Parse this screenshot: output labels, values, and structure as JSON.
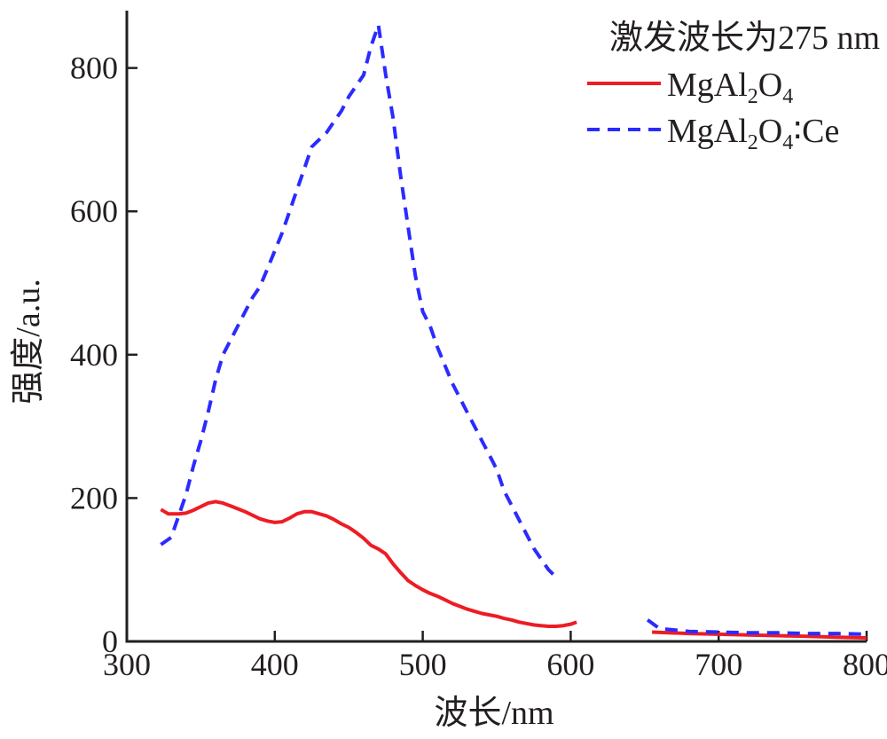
{
  "chart_data": {
    "type": "line",
    "title": "",
    "xlabel": "波长/nm",
    "ylabel": "强度/a.u.",
    "xlim": [
      300,
      800
    ],
    "ylim": [
      0,
      880
    ],
    "x_ticks": [
      300,
      400,
      500,
      600,
      700,
      800
    ],
    "y_ticks": [
      0,
      200,
      400,
      600,
      800
    ],
    "grid": false,
    "legend": {
      "placement": "top-right",
      "title": "激发波长为275 nm"
    },
    "series": [
      {
        "name": "MgAl2O4",
        "name_parts": {
          "base": "MgAl",
          "sub1": "2",
          "mid": "O",
          "sub2": "4",
          "suffix": ""
        },
        "color": "#ee1c24",
        "style": "solid",
        "segments": [
          [
            [
              323,
              184
            ],
            [
              328,
              178
            ],
            [
              335,
              178
            ],
            [
              340,
              179
            ],
            [
              345,
              183
            ],
            [
              350,
              188
            ],
            [
              355,
              193
            ],
            [
              360,
              195
            ],
            [
              365,
              193
            ],
            [
              370,
              189
            ],
            [
              375,
              185
            ],
            [
              380,
              181
            ],
            [
              385,
              176
            ],
            [
              390,
              171
            ],
            [
              395,
              168
            ],
            [
              400,
              166
            ],
            [
              405,
              167
            ],
            [
              410,
              172
            ],
            [
              415,
              178
            ],
            [
              420,
              181
            ],
            [
              425,
              181
            ],
            [
              430,
              178
            ],
            [
              435,
              175
            ],
            [
              440,
              170
            ],
            [
              445,
              164
            ],
            [
              450,
              159
            ],
            [
              455,
              152
            ],
            [
              460,
              144
            ],
            [
              465,
              134
            ],
            [
              470,
              129
            ],
            [
              475,
              122
            ],
            [
              480,
              108
            ],
            [
              485,
              96
            ],
            [
              490,
              85
            ],
            [
              495,
              78
            ],
            [
              500,
              72
            ],
            [
              505,
              67
            ],
            [
              510,
              63
            ],
            [
              515,
              58
            ],
            [
              520,
              53
            ],
            [
              525,
              49
            ],
            [
              530,
              45
            ],
            [
              535,
              42
            ],
            [
              540,
              39
            ],
            [
              545,
              37
            ],
            [
              550,
              35
            ],
            [
              555,
              32
            ],
            [
              560,
              30
            ],
            [
              565,
              27
            ],
            [
              570,
              25
            ],
            [
              575,
              23
            ],
            [
              580,
              22
            ],
            [
              585,
              21
            ],
            [
              590,
              21
            ],
            [
              595,
              22
            ],
            [
              600,
              24
            ],
            [
              604,
              27
            ]
          ],
          [
            [
              655,
              13
            ],
            [
              680,
              11
            ],
            [
              700,
              10
            ],
            [
              720,
              9
            ],
            [
              740,
              8
            ],
            [
              760,
              7
            ],
            [
              780,
              6
            ],
            [
              800,
              5
            ]
          ]
        ]
      },
      {
        "name": "MgAl2O4:Ce",
        "name_parts": {
          "base": "MgAl",
          "sub1": "2",
          "mid": "O",
          "sub2": "4",
          "suffix": "∶Ce"
        },
        "color": "#2b2bff",
        "style": "dashed",
        "segments": [
          [
            [
              323,
              135
            ],
            [
              330,
              145
            ],
            [
              335,
              175
            ],
            [
              340,
              205
            ],
            [
              345,
              245
            ],
            [
              350,
              280
            ],
            [
              355,
              320
            ],
            [
              360,
              365
            ],
            [
              365,
              400
            ],
            [
              370,
              420
            ],
            [
              375,
              440
            ],
            [
              380,
              460
            ],
            [
              385,
              480
            ],
            [
              390,
              495
            ],
            [
              395,
              520
            ],
            [
              400,
              545
            ],
            [
              405,
              570
            ],
            [
              410,
              600
            ],
            [
              415,
              630
            ],
            [
              420,
              660
            ],
            [
              425,
              690
            ],
            [
              430,
              700
            ],
            [
              435,
              710
            ],
            [
              440,
              725
            ],
            [
              445,
              740
            ],
            [
              450,
              760
            ],
            [
              455,
              775
            ],
            [
              460,
              790
            ],
            [
              465,
              830
            ],
            [
              470,
              860
            ],
            [
              475,
              790
            ],
            [
              480,
              730
            ],
            [
              485,
              650
            ],
            [
              490,
              580
            ],
            [
              495,
              510
            ],
            [
              500,
              460
            ],
            [
              505,
              440
            ],
            [
              510,
              410
            ],
            [
              515,
              385
            ],
            [
              520,
              360
            ],
            [
              525,
              340
            ],
            [
              530,
              320
            ],
            [
              535,
              300
            ],
            [
              540,
              280
            ],
            [
              545,
              260
            ],
            [
              550,
              240
            ],
            [
              555,
              210
            ],
            [
              560,
              190
            ],
            [
              565,
              170
            ],
            [
              570,
              150
            ],
            [
              575,
              130
            ],
            [
              580,
              115
            ],
            [
              585,
              100
            ],
            [
              590,
              90
            ]
          ],
          [
            [
              652,
              30
            ],
            [
              660,
              18
            ],
            [
              680,
              14
            ],
            [
              700,
              13
            ],
            [
              720,
              12
            ],
            [
              740,
              12
            ],
            [
              760,
              11
            ],
            [
              780,
              11
            ],
            [
              800,
              10
            ]
          ]
        ]
      }
    ]
  }
}
